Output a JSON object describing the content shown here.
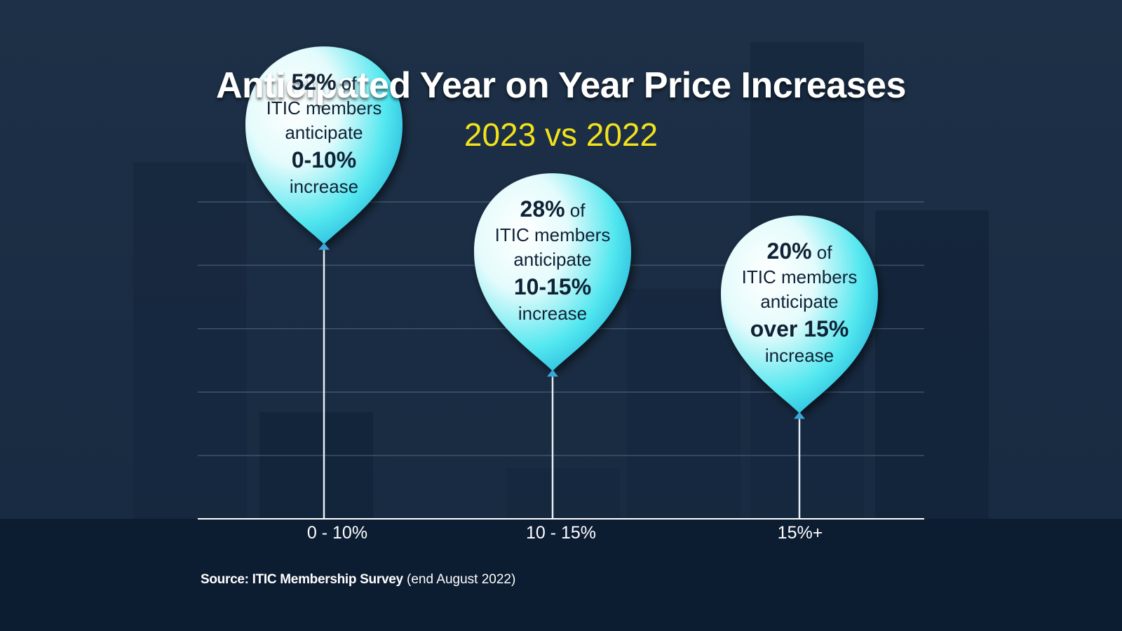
{
  "chart_data": {
    "type": "bar",
    "title": "Anticipated Year on Year Price Increases",
    "subtitle": "2023 vs 2022",
    "categories": [
      "0 - 10%",
      "10 - 15%",
      "15%+"
    ],
    "values": [
      52,
      28,
      20
    ],
    "unit": "%",
    "balloons": [
      {
        "pct": "52%",
        "of": " of",
        "line1": "ITIC members",
        "line2": "anticipate",
        "range": "0-10%",
        "suffix": "increase"
      },
      {
        "pct": "28%",
        "of": " of",
        "line1": "ITIC members",
        "line2": "anticipate",
        "range": "10-15%",
        "suffix": "increase"
      },
      {
        "pct": "20%",
        "of": " of",
        "line1": "ITIC members",
        "line2": "anticipate",
        "range": "over 15%",
        "suffix": "increase"
      }
    ],
    "ylim": [
      0,
      60
    ],
    "grid": true,
    "legend": "none"
  },
  "source": {
    "label": "Source: ITIC Membership Survey",
    "note": " (end August 2022)"
  },
  "colors": {
    "title": "#ffffff",
    "subtitle": "#f2e21a",
    "balloon_light": "#ffffff",
    "balloon_dark": "#17d8e6",
    "background": "#1b2d44"
  }
}
